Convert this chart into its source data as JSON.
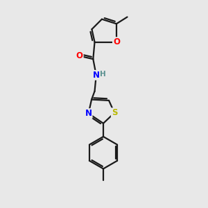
{
  "bg_color": "#e8e8e8",
  "bond_color": "#1a1a1a",
  "bond_width": 1.6,
  "atom_colors": {
    "O": "#ff0000",
    "N": "#0000ff",
    "S": "#b8b800",
    "C": "#1a1a1a",
    "H": "#5a9090"
  },
  "font_size": 8.5,
  "fig_size": [
    3.0,
    3.0
  ],
  "dpi": 100
}
